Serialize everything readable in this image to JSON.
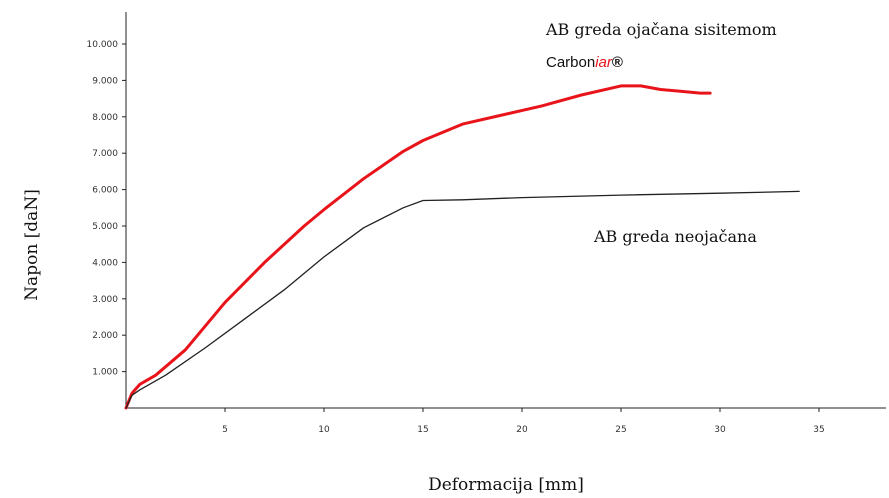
{
  "chart_data": {
    "type": "line",
    "title": "",
    "xlabel": "Deformacija [mm]",
    "ylabel": "Napon  [daN]",
    "xlim": [
      0,
      38
    ],
    "ylim": [
      0,
      11000
    ],
    "x_ticks": [
      5,
      10,
      15,
      20,
      25,
      30,
      35
    ],
    "x_tick_labels": [
      "5",
      "10",
      "15",
      "20",
      "25",
      "30",
      "35"
    ],
    "y_ticks": [
      1000,
      2000,
      3000,
      4000,
      5000,
      6000,
      7000,
      8000,
      9000,
      10000
    ],
    "y_tick_labels": [
      "1.000",
      "2.000",
      "3.000",
      "4.000",
      "5.000",
      "6.000",
      "7.000",
      "8.000",
      "9.000",
      "10.000"
    ],
    "grid": false,
    "legend": "none",
    "annotations": {
      "reinforced_line1": "AB greda ojačana sisitemom",
      "reinforced_brand_a": "Carbon",
      "reinforced_brand_b": "iar",
      "reinforced_brand_c": "®",
      "unreinforced": "AB greda neojačana"
    },
    "series": [
      {
        "color": "#e8141a",
        "x": [
          0,
          0.3,
          0.7,
          1.5,
          3,
          5,
          7,
          9,
          10,
          12,
          14,
          15,
          17,
          19,
          21,
          23,
          25,
          26,
          27,
          28,
          29,
          29.5
        ],
        "y": [
          0,
          400,
          650,
          900,
          1600,
          2900,
          4000,
          5000,
          5450,
          6300,
          7050,
          7350,
          7800,
          8050,
          8300,
          8600,
          8850,
          8850,
          8750,
          8700,
          8650,
          8650
        ]
      },
      {
        "color": "#222222",
        "x": [
          0,
          0.3,
          0.7,
          2,
          4,
          6,
          8,
          10,
          12,
          14,
          15,
          17,
          20,
          25,
          30,
          34
        ],
        "y": [
          0,
          350,
          500,
          900,
          1650,
          2450,
          3250,
          4150,
          4950,
          5500,
          5700,
          5720,
          5780,
          5850,
          5900,
          5950
        ]
      }
    ]
  }
}
